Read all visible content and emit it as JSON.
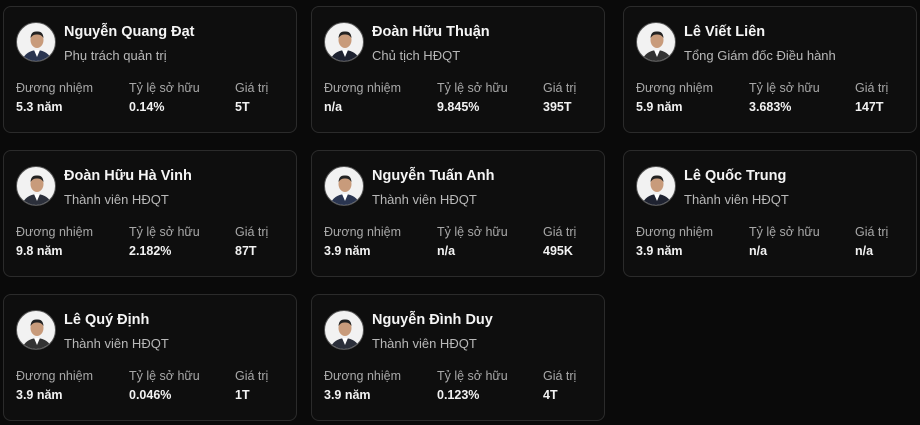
{
  "stat_labels": [
    "Đương nhiệm",
    "Tỷ lệ sở hữu",
    "Giá trị"
  ],
  "people": [
    {
      "name": "Nguyễn Quang Đạt",
      "role": "Phụ trách quản trị",
      "stats": [
        "5.3 năm",
        "0.14%",
        "5T"
      ]
    },
    {
      "name": "Đoàn Hữu Thuận",
      "role": "Chủ tịch HĐQT",
      "stats": [
        "n/a",
        "9.845%",
        "395T"
      ]
    },
    {
      "name": "Lê Viết Liên",
      "role": "Tổng Giám đốc Điều hành",
      "stats": [
        "5.9 năm",
        "3.683%",
        "147T"
      ]
    },
    {
      "name": "Đoàn Hữu Hà Vinh",
      "role": "Thành viên HĐQT",
      "stats": [
        "9.8 năm",
        "2.182%",
        "87T"
      ]
    },
    {
      "name": "Nguyễn Tuấn Anh",
      "role": "Thành viên HĐQT",
      "stats": [
        "3.9 năm",
        "n/a",
        "495K"
      ]
    },
    {
      "name": "Lê Quốc Trung",
      "role": "Thành viên HĐQT",
      "stats": [
        "3.9 năm",
        "n/a",
        "n/a"
      ]
    },
    {
      "name": "Lê Quý Định",
      "role": "Thành viên HĐQT",
      "stats": [
        "3.9 năm",
        "0.046%",
        "1T"
      ]
    },
    {
      "name": "Nguyễn Đình Duy",
      "role": "Thành viên HĐQT",
      "stats": [
        "3.9 năm",
        "0.123%",
        "4T"
      ]
    }
  ]
}
